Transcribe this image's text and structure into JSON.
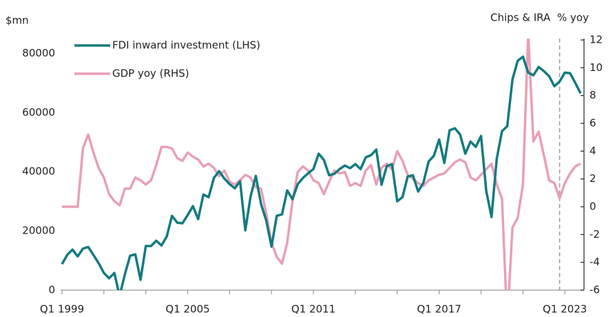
{
  "chart_data": {
    "type": "line",
    "ylabel": "$mn",
    "y2label": "% yoy",
    "annotation": {
      "text": "Chips & IRA",
      "category_index": 95
    },
    "categories": [
      "Q1 1999",
      null,
      null,
      null,
      null,
      null,
      null,
      null,
      null,
      null,
      null,
      null,
      null,
      null,
      null,
      null,
      null,
      null,
      null,
      null,
      null,
      null,
      null,
      null,
      "Q1 2005",
      null,
      null,
      null,
      null,
      null,
      null,
      null,
      null,
      null,
      null,
      null,
      null,
      null,
      null,
      null,
      null,
      null,
      null,
      null,
      null,
      null,
      null,
      null,
      "Q1 2011",
      null,
      null,
      null,
      null,
      null,
      null,
      null,
      null,
      null,
      null,
      null,
      null,
      null,
      null,
      null,
      null,
      null,
      null,
      null,
      null,
      null,
      null,
      null,
      "Q1 2017",
      null,
      null,
      null,
      null,
      null,
      null,
      null,
      null,
      null,
      null,
      null,
      null,
      null,
      null,
      null,
      null,
      null,
      null,
      null,
      null,
      null,
      null,
      null,
      "Q1 2023",
      null,
      null,
      null
    ],
    "xtick_step": 8,
    "series": [
      {
        "name": "FDI inward investment (LHS)",
        "color": "#137a80",
        "axis": "y",
        "values": [
          8800,
          11900,
          13700,
          11400,
          14000,
          14600,
          11900,
          9100,
          5800,
          4000,
          5800,
          -2000,
          5300,
          11600,
          12100,
          3500,
          14900,
          14900,
          16700,
          15100,
          18100,
          25100,
          22800,
          22600,
          25400,
          28400,
          24000,
          32300,
          31400,
          37900,
          40200,
          37700,
          35800,
          34400,
          36800,
          20200,
          31600,
          38600,
          29100,
          23500,
          14700,
          25100,
          25600,
          33700,
          30700,
          35800,
          37900,
          39500,
          40900,
          46100,
          44000,
          38800,
          39300,
          40900,
          42100,
          41200,
          42600,
          40900,
          44900,
          45600,
          47500,
          35600,
          41900,
          42600,
          30000,
          31400,
          38400,
          38800,
          33300,
          36300,
          43500,
          45400,
          50900,
          43000,
          54000,
          54700,
          52600,
          46100,
          50200,
          48400,
          52100,
          33500,
          24700,
          44400,
          53700,
          55400,
          71200,
          77500,
          78900,
          73500,
          72600,
          75400,
          74000,
          72300,
          68900,
          70500,
          73500,
          73300,
          70000,
          66500
        ]
      },
      {
        "name": "GDP yoy (RHS)",
        "color": "#e8a0b4",
        "axis": "y2",
        "values": [
          0,
          0,
          0,
          0,
          4.2,
          5.2,
          3.9,
          2.8,
          2.1,
          0.9,
          0.4,
          0.1,
          1.3,
          1.3,
          2.1,
          1.9,
          1.6,
          1.9,
          3.0,
          4.3,
          4.3,
          4.2,
          3.5,
          3.3,
          3.9,
          3.6,
          3.4,
          2.9,
          3.1,
          2.8,
          2.2,
          2.6,
          1.8,
          1.6,
          1.9,
          2.3,
          2.1,
          1.4,
          1.3,
          -0.5,
          -2.6,
          -3.6,
          -4.1,
          -2.6,
          0.4,
          2.5,
          2.9,
          2.6,
          1.9,
          1.7,
          0.9,
          1.8,
          2.6,
          2.4,
          2.5,
          1.5,
          1.7,
          1.5,
          2.6,
          3.0,
          1.6,
          2.8,
          3.1,
          2.7,
          4.0,
          3.3,
          2.3,
          2.0,
          1.7,
          1.5,
          1.9,
          2.1,
          2.3,
          2.4,
          2.8,
          3.2,
          3.4,
          3.2,
          2.1,
          1.9,
          2.3,
          2.7,
          3.1,
          1.6,
          0.6,
          -8.4,
          -1.5,
          -0.8,
          1.6,
          12.5,
          4.7,
          5.4,
          3.7,
          1.9,
          1.7,
          0.6,
          1.7,
          2.4,
          2.9,
          3.1
        ]
      }
    ],
    "ylim": [
      0,
      85000
    ],
    "yticks": [
      0,
      20000,
      40000,
      60000,
      80000
    ],
    "y2lim": [
      -6,
      12.1
    ],
    "y2ticks": [
      -6,
      -4,
      -2,
      0,
      2,
      4,
      6,
      8,
      10,
      12
    ],
    "legend": "upper left"
  }
}
